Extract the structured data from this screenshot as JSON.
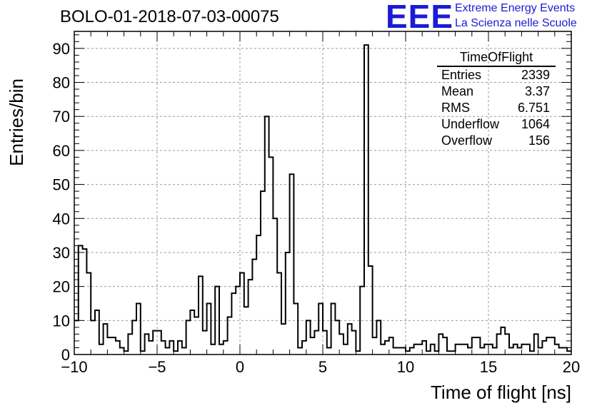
{
  "header": {
    "run_title": "BOLO-01-2018-07-03-00075",
    "logo_text": "EEE",
    "logo_line1": "Extreme Energy Events",
    "logo_line2": "La Scienza nelle Scuole",
    "logo_color": "#1b1bd6"
  },
  "stats_box": {
    "title": "TimeOfFlight",
    "rows": [
      {
        "label": "Entries",
        "value": "2339"
      },
      {
        "label": "Mean",
        "value": "3.37"
      },
      {
        "label": "RMS",
        "value": "6.751"
      },
      {
        "label": "Underflow",
        "value": "1064"
      },
      {
        "label": "Overflow",
        "value": "156"
      }
    ]
  },
  "chart_data": {
    "type": "bar",
    "histogram": true,
    "title": "BOLO-01-2018-07-03-00075",
    "xlabel": "Time of flight [ns]",
    "ylabel": "Entries/bin",
    "xlim": [
      -10,
      20
    ],
    "ylim": [
      0,
      95
    ],
    "xticks": [
      -10,
      -5,
      0,
      5,
      10,
      15,
      20
    ],
    "yticks": [
      0,
      10,
      20,
      30,
      40,
      50,
      60,
      70,
      80,
      90
    ],
    "grid": true,
    "bin_width": 0.25,
    "bin_start": -10,
    "values": [
      10,
      32,
      31,
      24,
      10,
      13,
      3,
      9,
      5,
      5,
      4,
      2,
      1,
      6,
      10,
      15,
      1,
      6,
      4,
      7,
      7,
      4,
      2,
      4,
      1,
      4,
      2,
      10,
      13,
      11,
      23,
      7,
      15,
      3,
      20,
      3,
      4,
      11,
      18,
      20,
      24,
      14,
      22,
      28,
      35,
      48,
      70,
      58,
      40,
      24,
      9,
      30,
      53,
      15,
      2,
      4,
      10,
      5,
      7,
      15,
      7,
      2,
      15,
      10,
      6,
      3,
      9,
      7,
      1,
      20,
      91,
      26,
      5,
      10,
      3,
      4,
      5,
      2,
      2,
      2,
      1,
      2,
      3,
      3,
      4,
      1,
      3,
      1,
      6,
      5,
      1,
      1,
      3,
      3,
      3,
      2,
      5,
      5,
      2,
      3,
      3,
      2,
      6,
      8,
      6,
      2,
      3,
      2,
      3,
      3,
      1,
      6,
      2,
      4,
      5,
      5,
      3,
      2,
      2,
      1
    ]
  }
}
